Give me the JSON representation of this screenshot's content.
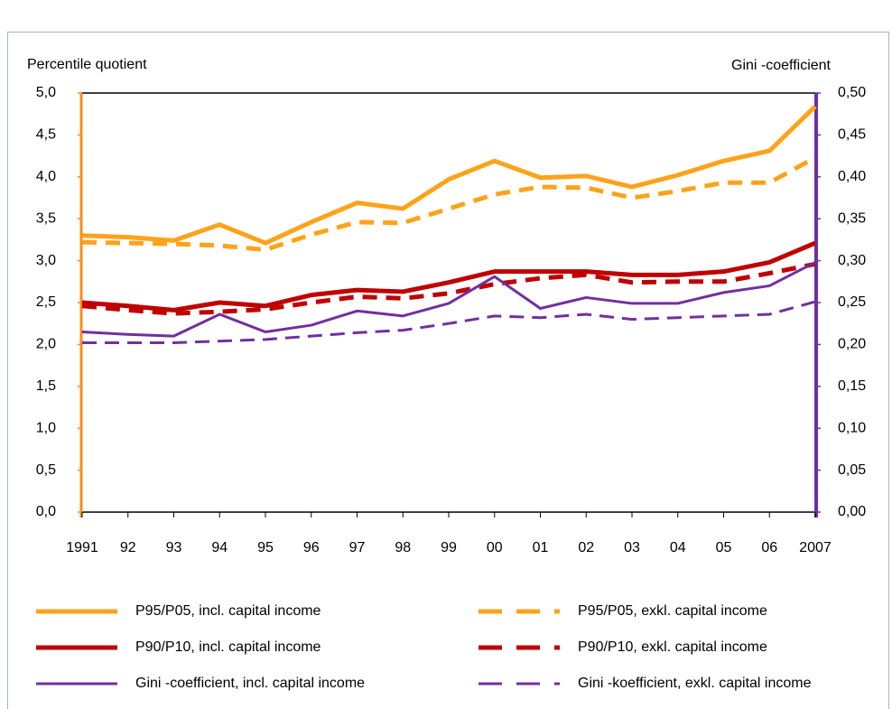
{
  "chart_data": {
    "type": "line",
    "y_label": "Percentile quotient",
    "y2_label": "Gini -coefficient",
    "categories": [
      "1991",
      "92",
      "93",
      "94",
      "95",
      "96",
      "97",
      "98",
      "99",
      "00",
      "01",
      "02",
      "03",
      "04",
      "05",
      "06",
      "2007"
    ],
    "ylim": [
      0,
      5
    ],
    "yticks": [
      {
        "value": 0,
        "label": "0,0"
      },
      {
        "value": 0.5,
        "label": "0,5"
      },
      {
        "value": 1,
        "label": "1,0"
      },
      {
        "value": 1.5,
        "label": "1,5"
      },
      {
        "value": 2,
        "label": "2,0"
      },
      {
        "value": 2.5,
        "label": "2,5"
      },
      {
        "value": 3,
        "label": "3,0"
      },
      {
        "value": 3.5,
        "label": "3,5"
      },
      {
        "value": 4,
        "label": "4,0"
      },
      {
        "value": 4.5,
        "label": "4,5"
      },
      {
        "value": 5,
        "label": "5,0"
      }
    ],
    "y2lim": [
      0,
      0.5
    ],
    "y2ticks": [
      {
        "value": 0,
        "label": "0,00"
      },
      {
        "value": 0.05,
        "label": "0,05"
      },
      {
        "value": 0.1,
        "label": "0,10"
      },
      {
        "value": 0.15,
        "label": "0,15"
      },
      {
        "value": 0.2,
        "label": "0,20"
      },
      {
        "value": 0.25,
        "label": "0,25"
      },
      {
        "value": 0.3,
        "label": "0,30"
      },
      {
        "value": 0.35,
        "label": "0,35"
      },
      {
        "value": 0.4,
        "label": "0,40"
      },
      {
        "value": 0.45,
        "label": "0,45"
      },
      {
        "value": 0.5,
        "label": "0,50"
      }
    ],
    "y_color": "#ff8c1a",
    "y2_color": "#7030a0",
    "y_label_color": "#c00000",
    "series": [
      {
        "name": "P95/P05, incl. capital income",
        "color": "#ffa31a",
        "dashed": false,
        "values": [
          3.3,
          3.28,
          3.24,
          3.43,
          3.21,
          3.46,
          3.69,
          3.62,
          3.97,
          4.19,
          3.99,
          4.01,
          3.88,
          4.02,
          4.19,
          4.31,
          4.84
        ]
      },
      {
        "name": "P95/P05, exkl. capital income",
        "color": "#ffa31a",
        "dashed": true,
        "values": [
          3.22,
          3.21,
          3.2,
          3.18,
          3.13,
          3.31,
          3.46,
          3.45,
          3.62,
          3.79,
          3.88,
          3.87,
          3.75,
          3.83,
          3.93,
          3.93,
          4.23
        ]
      },
      {
        "name": "P90/P10, incl. capital income",
        "color": "#c00000",
        "dashed": false,
        "values": [
          2.5,
          2.46,
          2.41,
          2.5,
          2.46,
          2.59,
          2.65,
          2.63,
          2.74,
          2.87,
          2.87,
          2.87,
          2.83,
          2.83,
          2.87,
          2.98,
          3.21
        ]
      },
      {
        "name": "P90/P10, exkl. capital income",
        "color": "#c00000",
        "dashed": true,
        "values": [
          2.46,
          2.41,
          2.37,
          2.39,
          2.42,
          2.5,
          2.57,
          2.55,
          2.61,
          2.72,
          2.79,
          2.83,
          2.74,
          2.75,
          2.75,
          2.85,
          2.96
        ]
      },
      {
        "name": "Gini -coefficient, incl. capital income",
        "color": "#7030a0",
        "dashed": false,
        "axis": "y2",
        "values": [
          0.215,
          0.212,
          0.21,
          0.236,
          0.215,
          0.223,
          0.24,
          0.234,
          0.249,
          0.281,
          0.243,
          0.256,
          0.249,
          0.249,
          0.262,
          0.27,
          0.298
        ]
      },
      {
        "name": "Gini -koefficient, exkl. capital income",
        "color": "#7030a0",
        "dashed": true,
        "axis": "y2",
        "values": [
          0.202,
          0.202,
          0.202,
          0.204,
          0.206,
          0.21,
          0.214,
          0.217,
          0.225,
          0.234,
          0.232,
          0.236,
          0.23,
          0.232,
          0.234,
          0.236,
          0.251
        ]
      }
    ]
  }
}
